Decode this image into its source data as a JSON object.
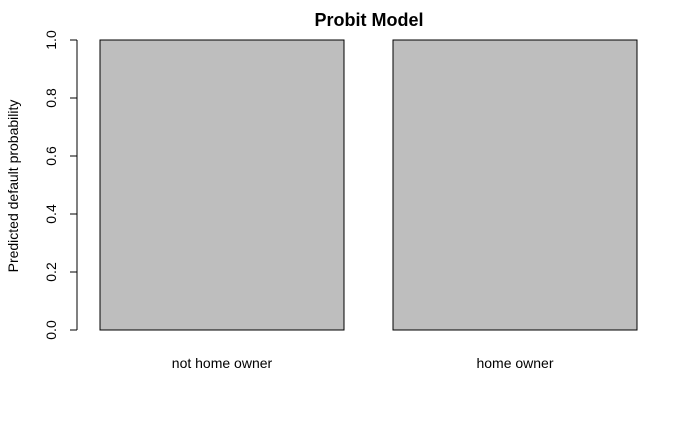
{
  "chart_data": {
    "type": "bar",
    "title": "Probit Model",
    "xlabel": "",
    "ylabel": "Predicted default probability",
    "categories": [
      "not home owner",
      "home owner"
    ],
    "values": [
      1.0,
      1.0
    ],
    "ylim": [
      0,
      1
    ],
    "yticks": [
      "0.0",
      "0.2",
      "0.4",
      "0.6",
      "0.8",
      "1.0"
    ],
    "grid": false,
    "legend": "none",
    "bar_color": "#bebebe"
  }
}
